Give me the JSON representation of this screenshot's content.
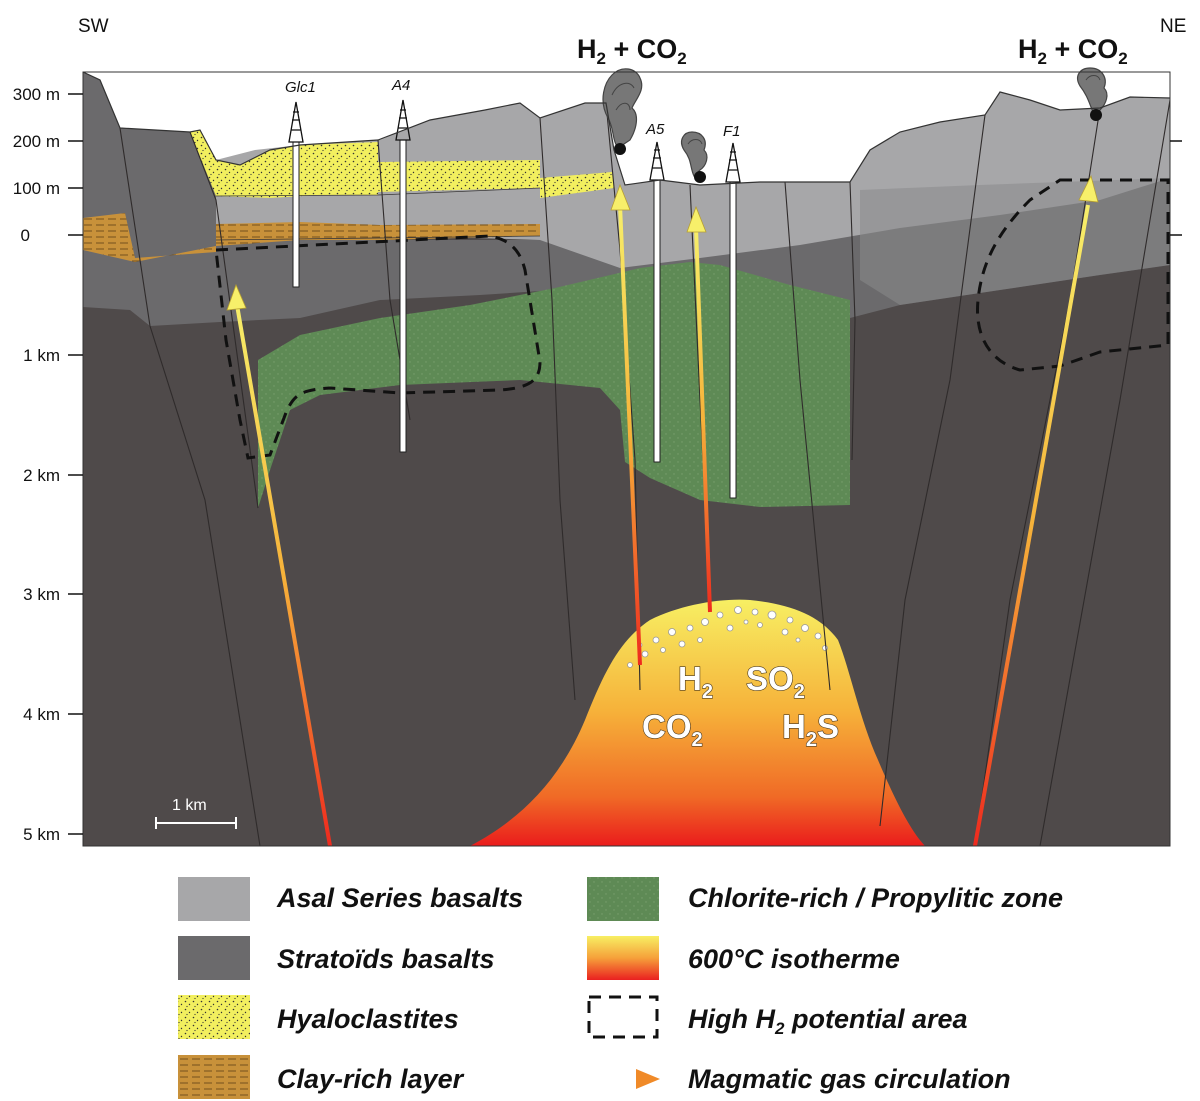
{
  "orientation": {
    "left": "SW",
    "right": "NE"
  },
  "depth_axis": {
    "labels": [
      "300 m",
      "200 m",
      "100 m",
      "0",
      "1 km",
      "2 km",
      "3 km",
      "4 km",
      "5 km"
    ]
  },
  "scale_bar": {
    "label": "1 km"
  },
  "emissions": [
    {
      "h": "H",
      "h_sub": "2",
      "plus": " + CO",
      "c_sub": "2"
    },
    {
      "h": "H",
      "h_sub": "2",
      "plus": " + CO",
      "c_sub": "2"
    }
  ],
  "wells": [
    "Glc1",
    "A4",
    "A5",
    "F1"
  ],
  "magma_gases": [
    {
      "base": "H",
      "sub": "2",
      "tail": ""
    },
    {
      "base": "SO",
      "sub": "2",
      "tail": ""
    },
    {
      "base": "CO",
      "sub": "2",
      "tail": ""
    },
    {
      "base": "H",
      "sub": "2",
      "tail": "S"
    }
  ],
  "legend": {
    "left": [
      {
        "label": "Asal Series basalts",
        "swatch": "asal",
        "color": "#a7a7a9"
      },
      {
        "label": "Stratoïds basalts",
        "swatch": "stratoid",
        "color": "#6b6a6c"
      },
      {
        "label": "Hyaloclastites",
        "swatch": "hyalo",
        "color": "#f2ef5f"
      },
      {
        "label": "Clay-rich layer",
        "swatch": "clay",
        "color": "#c8913a"
      }
    ],
    "right": [
      {
        "label": "Chlorite-rich / Propylitic zone",
        "swatch": "chlorite",
        "color": "#5e8a55"
      },
      {
        "label": "600°C isotherme",
        "swatch": "isotherm",
        "color": "#f7e94f"
      },
      {
        "label_prefix": "High H",
        "label_sub": "2",
        "label_suffix": " potential area",
        "swatch": "dashed"
      },
      {
        "label": "Magmatic gas circulation",
        "swatch": "arrow",
        "color": "#f0a030"
      }
    ]
  },
  "colors": {
    "deep_basement": "#4f4a4a",
    "stratoid": "#6b6a6c",
    "asal": "#a7a7a9",
    "hyaloclastite": "#f2ef5f",
    "clay": "#c8913a",
    "chlorite": "#5e8a55",
    "magma_top": "#f7e94f",
    "magma_bottom": "#ee2a1e"
  }
}
